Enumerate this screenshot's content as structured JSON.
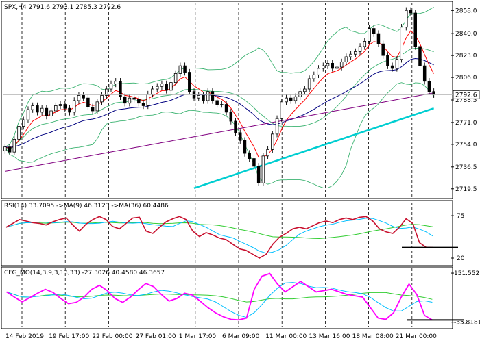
{
  "main": {
    "header": "SPX,H4  2791.6 2793.1 2785.3 2792.6",
    "price_label": "2792.6",
    "y_ticks": [
      2858.0,
      2840.0,
      2823.0,
      2806.0,
      2788.5,
      2771.0,
      2754.0,
      2736.5,
      2719.5
    ],
    "y_tick_labels": [
      "2858.0",
      "2840.0",
      "2823.0",
      "2806.0",
      "2788.5",
      "2771.0",
      "2754.0",
      "2736.5",
      "2719.5"
    ],
    "ylim": [
      2713,
      2864
    ]
  },
  "rsi": {
    "header": "RSI(14) 33.7095  ->MA(9) 46.3123  ->MA(36) 60.4486",
    "ticks": [
      "75",
      "20"
    ],
    "tick_values": [
      75,
      20
    ],
    "ylim": [
      12,
      92
    ],
    "level": 33.7
  },
  "cfg": {
    "header": "CFG_MO(14,3,9,3,13,33) -27.3026 40.4580 46.3657",
    "ticks": [
      "151.5521",
      "-35.8181"
    ],
    "tick_values": [
      151.5521,
      -35.8181
    ],
    "ylim": [
      -55,
      170
    ],
    "level": -27.3
  },
  "x_labels": [
    "14 Feb 2019",
    "19 Feb 17:00",
    "22 Feb 00:00",
    "27 Feb 01:00",
    "1 Mar 17:00",
    "6 Mar 09:00",
    "11 Mar 00:00",
    "13 Mar 16:00",
    "18 Mar 08:00",
    "21 Mar 00:00"
  ],
  "colors": {
    "candle": "#000000",
    "bollinger": "#3cb371",
    "ema_fast": "#ff0000",
    "ma_navy": "#000080",
    "ma_purple": "#800080",
    "ma_cyan": "#00ced1",
    "rsi_line": "#c8102e",
    "rsi_ma_fast": "#00bfff",
    "rsi_ma_slow": "#32cd32",
    "cfg_line": "#ff00ff",
    "cfg_ma_fast": "#00bfff",
    "cfg_ma_slow": "#32cd32",
    "level_line": "#000000"
  },
  "chart_data": [
    {
      "type": "candlestick",
      "title": "SPX,H4",
      "series": [
        {
          "name": "SPX",
          "values": [
            2752,
            2748,
            2758,
            2768,
            2773,
            2781,
            2784,
            2779,
            2782,
            2776,
            2780,
            2784,
            2785,
            2782,
            2779,
            2788,
            2792,
            2790,
            2783,
            2780,
            2787,
            2792,
            2797,
            2801,
            2803,
            2791,
            2786,
            2790,
            2789,
            2786,
            2784,
            2793,
            2797,
            2799,
            2801,
            2796,
            2802,
            2809,
            2815,
            2810,
            2795,
            2790,
            2792,
            2788,
            2795,
            2788,
            2785,
            2785,
            2779,
            2772,
            2763,
            2757,
            2747,
            2743,
            2737,
            2724,
            2745,
            2750,
            2762,
            2774,
            2787,
            2790,
            2788,
            2791,
            2795,
            2797,
            2805,
            2808,
            2813,
            2815,
            2817,
            2813,
            2814,
            2818,
            2822,
            2824,
            2826,
            2830,
            2834,
            2844,
            2840,
            2832,
            2823,
            2815,
            2813,
            2820,
            2845,
            2858,
            2856,
            2830,
            2815,
            2803,
            2795,
            2792.6
          ]
        }
      ],
      "ylim": [
        2713,
        2864
      ]
    },
    {
      "type": "line",
      "title": "RSI(14)",
      "series": [
        {
          "name": "RSI(14)",
          "values": [
            60,
            65,
            70,
            68,
            66,
            65,
            63,
            67,
            70,
            72,
            63,
            55,
            64,
            70,
            74,
            70,
            61,
            58,
            65,
            72,
            73,
            55,
            52,
            60,
            67,
            71,
            74,
            70,
            55,
            48,
            53,
            50,
            46,
            44,
            38,
            32,
            30,
            25,
            20,
            25,
            38,
            47,
            52,
            58,
            60,
            58,
            62,
            66,
            68,
            66,
            70,
            72,
            70,
            73,
            74,
            68,
            58,
            54,
            52,
            60,
            71,
            65,
            40,
            34,
            33.7
          ]
        }
      ],
      "ylim": [
        12,
        92
      ]
    },
    {
      "type": "line",
      "title": "CFG_MO(14,3,9,3,13,33)",
      "series": [
        {
          "name": "CFG_MO",
          "values": [
            80,
            60,
            42,
            58,
            75,
            90,
            78,
            55,
            35,
            40,
            60,
            90,
            105,
            85,
            55,
            40,
            60,
            88,
            112,
            100,
            70,
            45,
            55,
            75,
            68,
            45,
            20,
            0,
            -15,
            -25,
            -27,
            -20,
            90,
            140,
            150,
            110,
            80,
            100,
            120,
            100,
            80,
            85,
            90,
            80,
            70,
            65,
            60,
            20,
            -20,
            -25,
            0,
            60,
            110,
            70,
            -10,
            -27.3
          ]
        }
      ],
      "ylim": [
        -55,
        170
      ]
    }
  ]
}
